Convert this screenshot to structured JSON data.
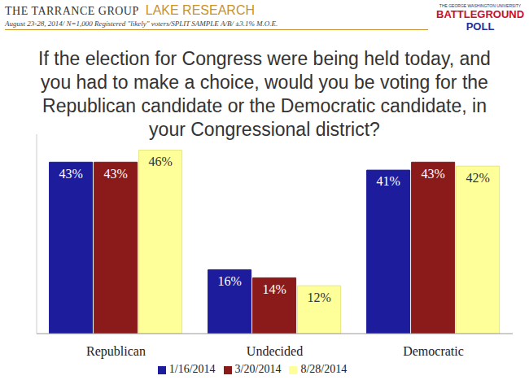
{
  "header": {
    "left": "THE TARRANCE GROUP",
    "right": "LAKE RESEARCH",
    "logo": [
      "BATTLEGROUND",
      "POLL"
    ],
    "logo_small": "THE GEORGE WASHINGTON UNIVERSITY"
  },
  "chart_data": {
    "type": "bar",
    "subtitle": "August 23-28, 2014/ N=1,000 Registered \"likely\" voters/SPLIT SAMPLE A/B/ ±3.1% M.O.E.",
    "title": "If the election for Congress were being held today, and you had to make a choice, would you be voting for the Republican candidate or the Democratic candidate, in your Congressional district?",
    "categories": [
      "Republican",
      "Undecided",
      "Democratic"
    ],
    "series": [
      {
        "name": "1/16/2014",
        "color": "#1c1c9c",
        "values": [
          43,
          16,
          41
        ],
        "value_labels": [
          "43%",
          "16%",
          "41%"
        ]
      },
      {
        "name": "3/20/2014",
        "color": "#8b1a1a",
        "values": [
          43,
          14,
          43
        ],
        "value_labels": [
          "43%",
          "14%",
          "43%"
        ]
      },
      {
        "name": "8/28/2014",
        "color": "#ffff99",
        "values": [
          46,
          12,
          42
        ],
        "value_labels": [
          "46%",
          "12%",
          "42%"
        ]
      }
    ],
    "ylim": [
      0,
      50
    ],
    "tick_labels": "x",
    "data_labels": true,
    "legend": "bottom",
    "grid": false
  }
}
